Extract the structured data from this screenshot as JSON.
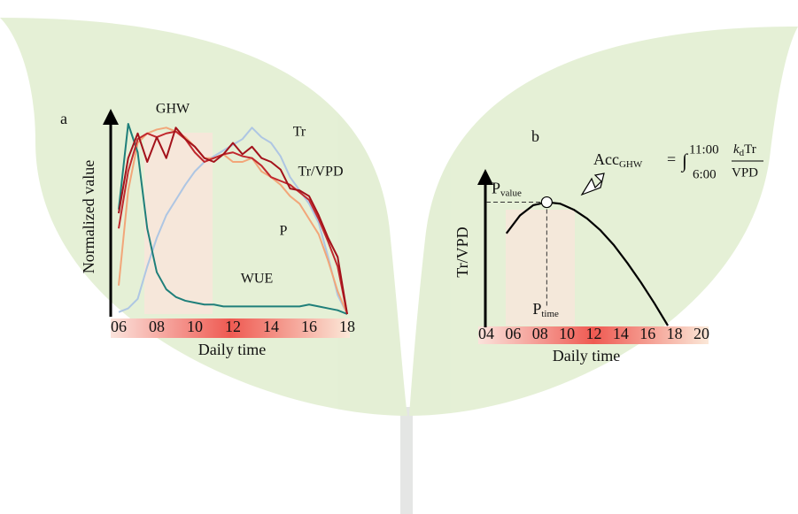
{
  "chart_data": [
    {
      "type": "line",
      "panel": "a",
      "ylabel": "Normalized value",
      "xlabel": "Daily time",
      "x": [
        6,
        6.5,
        7,
        7.5,
        8,
        8.5,
        9,
        9.5,
        10,
        10.5,
        11,
        11.5,
        12,
        12.5,
        13,
        13.5,
        14,
        14.5,
        15,
        15.5,
        16,
        16.5,
        17,
        17.5,
        18
      ],
      "xlim": [
        6,
        18
      ],
      "ylim": [
        0,
        1
      ],
      "xticks": [
        {
          "value": 6,
          "label": "06"
        },
        {
          "value": 8,
          "label": "08"
        },
        {
          "value": 10,
          "label": "10"
        },
        {
          "value": 12,
          "label": "12"
        },
        {
          "value": 14,
          "label": "14"
        },
        {
          "value": 16,
          "label": "16"
        },
        {
          "value": 18,
          "label": "18"
        }
      ],
      "series": [
        {
          "name": "Tr",
          "color": "#aec6e3",
          "values": [
            0.01,
            0.03,
            0.08,
            0.25,
            0.4,
            0.52,
            0.6,
            0.68,
            0.75,
            0.8,
            0.83,
            0.86,
            0.89,
            0.92,
            0.98,
            0.93,
            0.9,
            0.83,
            0.72,
            0.65,
            0.58,
            0.48,
            0.3,
            0.1,
            0
          ]
        },
        {
          "name": "P",
          "color": "#f2a679",
          "values": [
            0.15,
            0.65,
            0.9,
            0.95,
            0.97,
            0.98,
            0.96,
            0.93,
            0.88,
            0.82,
            0.82,
            0.84,
            0.8,
            0.8,
            0.82,
            0.75,
            0.72,
            0.68,
            0.62,
            0.58,
            0.5,
            0.42,
            0.28,
            0.12,
            0
          ]
        },
        {
          "name": "WUE",
          "color": "#1f7f7a",
          "values": [
            0.55,
            1.0,
            0.85,
            0.45,
            0.22,
            0.13,
            0.09,
            0.07,
            0.06,
            0.05,
            0.05,
            0.04,
            0.04,
            0.04,
            0.04,
            0.04,
            0.04,
            0.04,
            0.04,
            0.04,
            0.05,
            0.04,
            0.03,
            0.02,
            0
          ]
        },
        {
          "name": "Tr/VPD",
          "color": "#c0282d",
          "values": [
            0.45,
            0.75,
            0.92,
            0.95,
            0.93,
            0.95,
            0.96,
            0.92,
            0.85,
            0.8,
            0.82,
            0.84,
            0.85,
            0.83,
            0.82,
            0.78,
            0.72,
            0.7,
            0.68,
            0.64,
            0.6,
            0.5,
            0.38,
            0.25,
            0
          ]
        },
        {
          "name": "GHW",
          "color": "#a3121b",
          "values": [
            0.53,
            0.82,
            0.95,
            0.8,
            0.93,
            0.82,
            0.98,
            0.92,
            0.88,
            0.82,
            0.8,
            0.84,
            0.9,
            0.84,
            0.88,
            0.82,
            0.8,
            0.76,
            0.66,
            0.65,
            0.62,
            0.52,
            0.4,
            0.3,
            0
          ]
        }
      ]
    },
    {
      "type": "line",
      "panel": "b",
      "ylabel": "Tr/VPD",
      "xlabel": "Daily time",
      "color": "#000000",
      "x": [
        5.5,
        6.5,
        7.5,
        8.5,
        9.5,
        10.5,
        11.5,
        12.5,
        13.5,
        14.5,
        15.5,
        16.5,
        17.5
      ],
      "values": [
        0.62,
        0.74,
        0.81,
        0.83,
        0.82,
        0.78,
        0.72,
        0.64,
        0.54,
        0.42,
        0.29,
        0.15,
        0
      ],
      "xlim": [
        4,
        20
      ],
      "ylim": [
        0,
        1
      ],
      "xticks": [
        {
          "value": 4,
          "label": "04"
        },
        {
          "value": 6,
          "label": "06"
        },
        {
          "value": 8,
          "label": "08"
        },
        {
          "value": 10,
          "label": "10"
        },
        {
          "value": 12,
          "label": "12"
        },
        {
          "value": 14,
          "label": "14"
        },
        {
          "value": 16,
          "label": "16"
        },
        {
          "value": 18,
          "label": "18"
        },
        {
          "value": 20,
          "label": "20"
        }
      ],
      "peak_label": {
        "text": "P",
        "sub": "value"
      },
      "time_label": {
        "text": "P",
        "sub": "time"
      },
      "formula": {
        "lhs": "Acc",
        "lhs_sub": "GHW",
        "eq": "=",
        "integral": "∫",
        "upper": "11:00",
        "lower": "6:00",
        "k": "k",
        "k_sub": "d",
        "num": "Tr",
        "den": "VPD"
      }
    }
  ]
}
